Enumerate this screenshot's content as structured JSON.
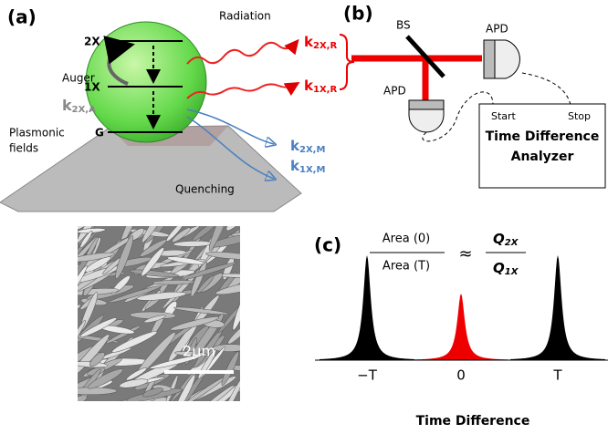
{
  "panel_a": {
    "label": "(a)",
    "radiation": "Radiation",
    "levels": [
      "2X",
      "1X",
      "G"
    ],
    "auger": "Auger",
    "rate_auger": {
      "k": "k",
      "sub": "2X,A"
    },
    "rate_rad_2x": {
      "k": "k",
      "sub": "2X,R"
    },
    "rate_rad_1x": {
      "k": "k",
      "sub": "1X,R"
    },
    "rate_q_2x": {
      "k": "k",
      "sub": "2X,M"
    },
    "rate_q_1x": {
      "k": "k",
      "sub": "1X,M"
    },
    "plasmonic": [
      "Plasmonic",
      "fields"
    ],
    "quenching": "Quenching"
  },
  "panel_b": {
    "label": "(b)",
    "bs": "BS",
    "detectors": [
      "APD",
      "APD"
    ],
    "start": "Start",
    "stop": "Stop",
    "analyzer": [
      "Time Difference",
      "Analyzer"
    ]
  },
  "sem": {
    "scale": "2μm"
  },
  "panel_c": {
    "label": "(c)",
    "numerator": "Area (0)",
    "denominator": "Area (T)",
    "approx": "≈",
    "q_num": {
      "q": "Q",
      "sub": "2X"
    },
    "q_den": {
      "q": "Q",
      "sub": "1X"
    },
    "ticks": [
      "−T",
      "0",
      "T"
    ],
    "xlabel": "Time Difference"
  }
}
